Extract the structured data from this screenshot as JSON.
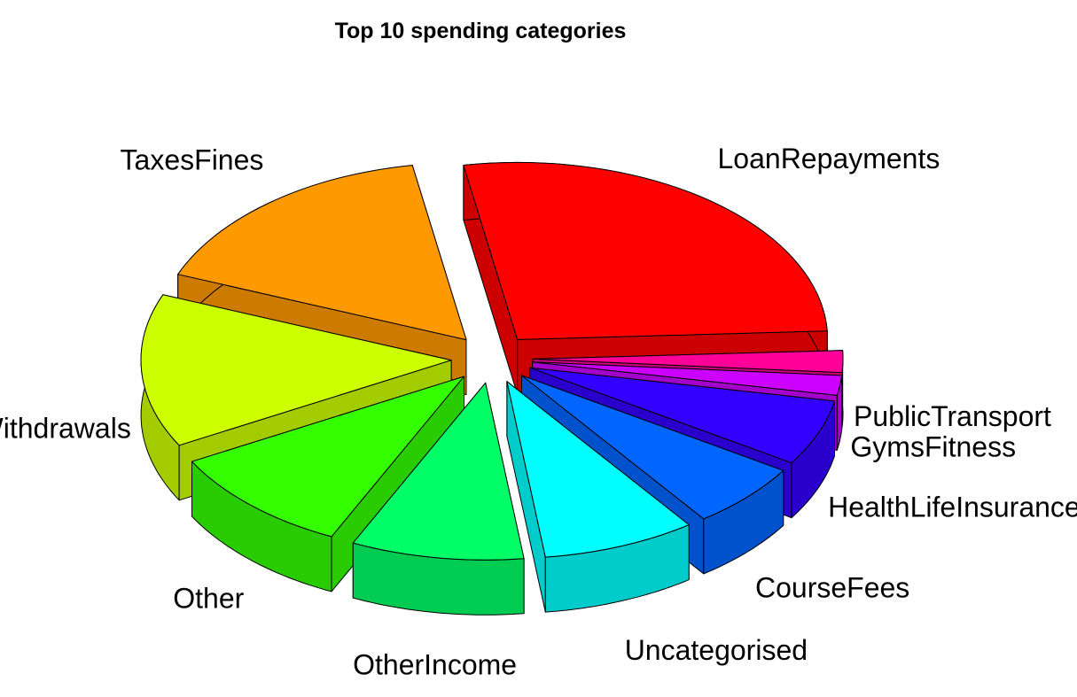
{
  "chart_data": {
    "type": "pie",
    "style": "3d-exploded",
    "title": "Top 10 spending categories",
    "slices": [
      {
        "label": "LoanRepayments",
        "value": 27.0,
        "color": "#ff0000"
      },
      {
        "label": "PublicTransport",
        "value": 2.0,
        "color": "#ff0099"
      },
      {
        "label": "GymsFitness",
        "value": 1.8,
        "color": "#cc00ff"
      },
      {
        "label": "HealthLifeInsurance",
        "value": 6.0,
        "color": "#3300ff"
      },
      {
        "label": "CourseFees",
        "value": 6.0,
        "color": "#0066ff"
      },
      {
        "label": "Uncategorised",
        "value": 8.0,
        "color": "#00ffff"
      },
      {
        "label": "OtherIncome",
        "value": 9.0,
        "color": "#00ff66"
      },
      {
        "label": "Other",
        "value": 10.0,
        "color": "#33ff00"
      },
      {
        "label": "ATMWithdrawals",
        "value": 14.0,
        "color": "#ccff00"
      },
      {
        "label": "TaxesFines",
        "value": 16.2,
        "color": "#ff9900"
      }
    ]
  }
}
